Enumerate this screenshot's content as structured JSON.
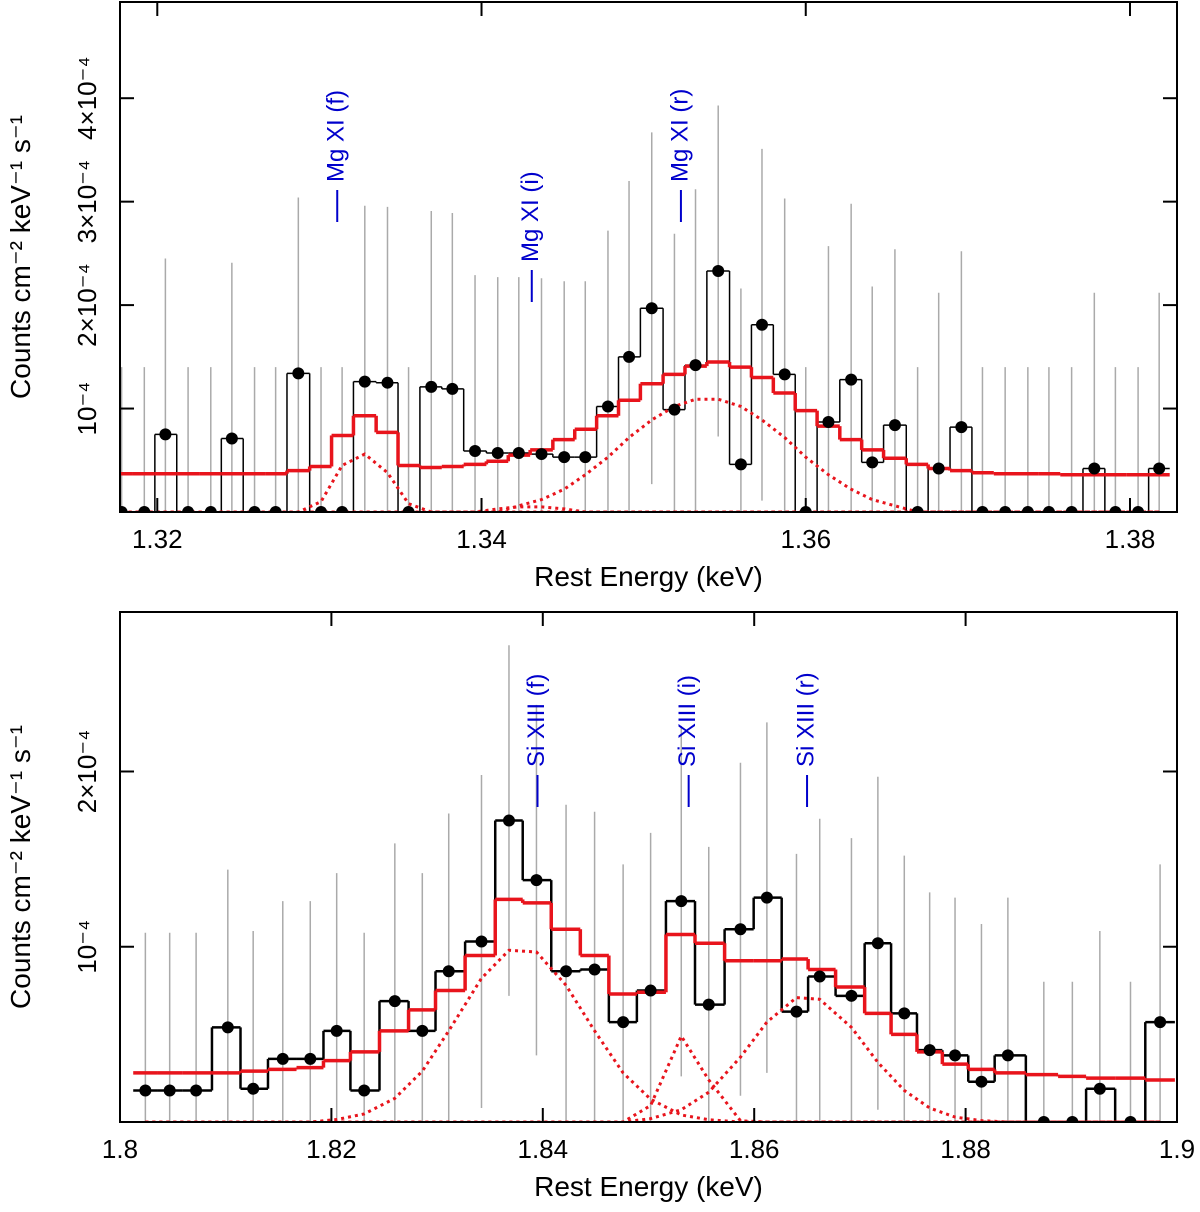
{
  "chart_data": [
    {
      "type": "spectrum",
      "xlabel": "Rest Energy (keV)",
      "ylabel": "Counts cm⁻² keV⁻¹ s⁻¹",
      "xlim": [
        1.3177,
        1.3829
      ],
      "ylim": [
        0,
        0.000493
      ],
      "xticks": [
        1.32,
        1.34,
        1.36,
        1.38
      ],
      "yticks": [
        {
          "value": 0.0001,
          "label": "10⁻⁴"
        },
        {
          "value": 0.0002,
          "label": "2×10⁻⁴"
        },
        {
          "value": 0.0003,
          "label": "3×10⁻⁴"
        },
        {
          "value": 0.0004,
          "label": "4×10⁻⁴"
        }
      ],
      "x": [
        1.3178,
        1.3192,
        1.3205,
        1.3219,
        1.3233,
        1.3246,
        1.326,
        1.3273,
        1.3287,
        1.3301,
        1.3314,
        1.3328,
        1.3342,
        1.3355,
        1.3369,
        1.3382,
        1.3396,
        1.341,
        1.3423,
        1.3437,
        1.3451,
        1.3464,
        1.3478,
        1.3491,
        1.3505,
        1.3519,
        1.3532,
        1.3546,
        1.356,
        1.3573,
        1.3587,
        1.36,
        1.3614,
        1.3628,
        1.3641,
        1.3655,
        1.3669,
        1.3682,
        1.3696,
        1.3709,
        1.3723,
        1.3737,
        1.375,
        1.3764,
        1.3778,
        1.3791,
        1.3805,
        1.3818
      ],
      "data": {
        "color": "#000000",
        "error_color": "#aaaaaa",
        "values": [
          0,
          0,
          7.5e-05,
          0,
          0,
          7.1e-05,
          0,
          0,
          0.000134,
          0,
          0,
          0.000126,
          0.000125,
          0,
          0.000121,
          0.000119,
          5.9e-05,
          5.7e-05,
          5.7e-05,
          5.6e-05,
          5.3e-05,
          5.3e-05,
          0.000102,
          0.00015,
          0.000197,
          9.9e-05,
          0.000142,
          0.000233,
          4.6e-05,
          0.000181,
          0.000133,
          0,
          8.7e-05,
          0.000128,
          4.8e-05,
          8.4e-05,
          0,
          4.2e-05,
          8.2e-05,
          0,
          0,
          0,
          0,
          0,
          4.2e-05,
          0,
          0,
          4.2e-05
        ],
        "errors": [
          0.00014,
          0.00014,
          0.00017,
          0.00014,
          0.00014,
          0.00017,
          0.00014,
          0.00014,
          0.00017,
          0.00014,
          0.00014,
          0.00017,
          0.00017,
          0.00014,
          0.00017,
          0.00017,
          0.00017,
          0.00017,
          0.00017,
          0.00017,
          0.00017,
          0.00017,
          0.00017,
          0.00017,
          0.00017,
          0.00017,
          0.00017,
          0.00016,
          0.00017,
          0.00017,
          0.00017,
          0.00014,
          0.00017,
          0.00017,
          0.00017,
          0.00017,
          0.00014,
          0.00017,
          0.00017,
          0.00014,
          0.00014,
          0.00014,
          0.00014,
          0.00014,
          0.00017,
          0.00014,
          0.00014,
          0.00017
        ]
      },
      "model": {
        "color": "#e8141c",
        "values": [
          3.7e-05,
          3.7e-05,
          3.7e-05,
          3.7e-05,
          3.7e-05,
          3.7e-05,
          3.7e-05,
          3.7e-05,
          4e-05,
          4.4e-05,
          7.4e-05,
          9.3e-05,
          7.7e-05,
          4.5e-05,
          4.3e-05,
          4.4e-05,
          4.6e-05,
          4.9e-05,
          5.5e-05,
          6e-05,
          7e-05,
          8e-05,
          9.3e-05,
          0.000108,
          0.000124,
          0.000133,
          0.000141,
          0.000145,
          0.00014,
          0.00013,
          0.000115,
          9.8e-05,
          8.3e-05,
          7e-05,
          6e-05,
          5.2e-05,
          4.6e-05,
          4.2e-05,
          4e-05,
          3.8e-05,
          3.7e-05,
          3.7e-05,
          3.7e-05,
          3.6e-05,
          3.6e-05,
          3.6e-05,
          3.6e-05,
          3.6e-05
        ]
      },
      "components": [
        {
          "values": [
            0,
            0,
            0,
            0,
            0,
            0,
            0,
            0,
            0,
            1e-05,
            4.5e-05,
            5.6e-05,
            3.8e-05,
            8e-06,
            0,
            0,
            0,
            0,
            0,
            0,
            0,
            0,
            0,
            0,
            0,
            0,
            0,
            0,
            0,
            0,
            0,
            0,
            0,
            0,
            0,
            0,
            0,
            0,
            0,
            0,
            0,
            0,
            0,
            0,
            0,
            0,
            0,
            0
          ]
        },
        {
          "values": [
            0,
            0,
            0,
            0,
            0,
            0,
            0,
            0,
            0,
            0,
            0,
            0,
            0,
            0,
            0,
            0,
            0,
            3e-06,
            5e-06,
            5e-06,
            3e-06,
            0,
            0,
            0,
            0,
            0,
            0,
            0,
            0,
            0,
            0,
            0,
            0,
            0,
            0,
            0,
            0,
            0,
            0,
            0,
            0,
            0,
            0,
            0,
            0,
            0,
            0,
            0
          ]
        },
        {
          "values": [
            0,
            0,
            0,
            0,
            0,
            0,
            0,
            0,
            0,
            0,
            0,
            0,
            0,
            0,
            0,
            0,
            0,
            0,
            6e-06,
            1.2e-05,
            2.2e-05,
            3.6e-05,
            5.3e-05,
            7.2e-05,
            8.9e-05,
            0.000102,
            0.000109,
            0.000109,
            0.000102,
            8.9e-05,
            7.2e-05,
            5.3e-05,
            3.6e-05,
            2.2e-05,
            1.2e-05,
            6e-06,
            0,
            0,
            0,
            0,
            0,
            0,
            0,
            0,
            0,
            0,
            0,
            0
          ]
        }
      ],
      "lines": [
        {
          "label": "Mg XI (f)",
          "x": 1.3311
        },
        {
          "label": "Mg XI (i)",
          "x": 1.3431
        },
        {
          "label": "Mg XI (r)",
          "x": 1.3523
        }
      ],
      "line_color": "#0000cc"
    },
    {
      "type": "spectrum",
      "xlabel": "Rest Energy (keV)",
      "ylabel": "Counts cm⁻² keV⁻¹ s⁻¹",
      "xlim": [
        1.8,
        1.9
      ],
      "ylim": [
        0,
        0.000291
      ],
      "xticks": [
        1.8,
        1.82,
        1.84,
        1.86,
        1.88,
        1.9
      ],
      "yticks": [
        {
          "value": 0.0001,
          "label": "10⁻⁴"
        },
        {
          "value": 0.0002,
          "label": "2×10⁻⁴"
        }
      ],
      "x": [
        1.8024,
        1.8047,
        1.8072,
        1.8102,
        1.8126,
        1.8154,
        1.818,
        1.8205,
        1.8231,
        1.826,
        1.8286,
        1.8311,
        1.8342,
        1.8368,
        1.8394,
        1.8422,
        1.8449,
        1.8476,
        1.8502,
        1.8531,
        1.8557,
        1.8587,
        1.8612,
        1.864,
        1.8662,
        1.8692,
        1.8717,
        1.8742,
        1.8766,
        1.879,
        1.8815,
        1.884,
        1.8874,
        1.8901,
        1.8927,
        1.8956,
        1.8984
      ],
      "data": {
        "color": "#000000",
        "error_color": "#aaaaaa",
        "values": [
          1.8e-05,
          1.8e-05,
          1.8e-05,
          5.4e-05,
          1.9e-05,
          3.6e-05,
          3.6e-05,
          5.2e-05,
          1.8e-05,
          6.9e-05,
          5.2e-05,
          8.6e-05,
          0.000103,
          0.000172,
          0.000138,
          8.6e-05,
          8.7e-05,
          5.7e-05,
          7.5e-05,
          0.000126,
          6.7e-05,
          0.00011,
          0.000128,
          6.3e-05,
          8.3e-05,
          7.2e-05,
          0.000102,
          6.2e-05,
          4.1e-05,
          3.8e-05,
          2.3e-05,
          3.8e-05,
          0,
          0,
          1.9e-05,
          0,
          5.7e-05
        ],
        "errors": [
          9e-05,
          9e-05,
          9e-05,
          9e-05,
          9e-05,
          9e-05,
          9e-05,
          9e-05,
          9e-05,
          9e-05,
          9e-05,
          9e-05,
          9.5e-05,
          0.0001,
          0.0001,
          9.5e-05,
          9e-05,
          9e-05,
          9e-05,
          0.0001,
          9e-05,
          9.5e-05,
          0.0001,
          9e-05,
          9e-05,
          9e-05,
          9.5e-05,
          9e-05,
          9e-05,
          9e-05,
          9e-05,
          9e-05,
          8e-05,
          8e-05,
          9e-05,
          8e-05,
          9e-05
        ]
      },
      "model": {
        "color": "#e8141c",
        "values": [
          2.8e-05,
          2.8e-05,
          2.8e-05,
          2.8e-05,
          2.9e-05,
          3e-05,
          3.1e-05,
          3.5e-05,
          4e-05,
          5.2e-05,
          6.4e-05,
          7.5e-05,
          9.5e-05,
          0.000127,
          0.000125,
          0.00011,
          9.5e-05,
          7.3e-05,
          7.4e-05,
          0.000107,
          0.000102,
          9.2e-05,
          9.2e-05,
          9.3e-05,
          8.7e-05,
          7.7e-05,
          6.2e-05,
          5e-05,
          4e-05,
          3.3e-05,
          3e-05,
          2.8e-05,
          2.7e-05,
          2.6e-05,
          2.5e-05,
          2.5e-05,
          2.4e-05
        ]
      },
      "components": [
        {
          "values": [
            0,
            0,
            0,
            0,
            0,
            0,
            0,
            1.4e-06,
            4.6e-06,
            1.35e-05,
            2.9e-05,
            5.2e-05,
            8.2e-05,
            9.8e-05,
            9.7e-05,
            7.8e-05,
            5.2e-05,
            2.8e-05,
            1.3e-05,
            4e-06,
            1.3e-06,
            0,
            0,
            0,
            0,
            0,
            0,
            0,
            0,
            0,
            0,
            0,
            0,
            0,
            0,
            0,
            0
          ]
        },
        {
          "values": [
            0,
            0,
            0,
            0,
            0,
            0,
            0,
            0,
            0,
            0,
            0,
            0,
            0,
            0,
            0,
            0,
            0,
            0,
            9.4e-06,
            4.9e-05,
            2.4e-05,
            7e-07,
            0,
            0,
            0,
            0,
            0,
            0,
            0,
            0,
            0,
            0,
            0,
            0,
            0,
            0,
            0
          ]
        },
        {
          "values": [
            0,
            0,
            0,
            0,
            0,
            0,
            0,
            0,
            0,
            0,
            0,
            0,
            0,
            0,
            0,
            0,
            0,
            0,
            1.9e-06,
            7e-06,
            1.7e-05,
            3.7e-05,
            5.7e-05,
            7.1e-05,
            7e-05,
            5.4e-05,
            3.4e-05,
            1.8e-05,
            8e-06,
            2.8e-06,
            8e-07,
            0,
            0,
            0,
            0,
            0,
            0
          ]
        }
      ],
      "lines": [
        {
          "label": "Si XIII (f)",
          "x": 1.8395
        },
        {
          "label": "Si XIII (i)",
          "x": 1.8538
        },
        {
          "label": "Si XIII (r)",
          "x": 1.865
        }
      ],
      "line_color": "#0000cc"
    }
  ]
}
